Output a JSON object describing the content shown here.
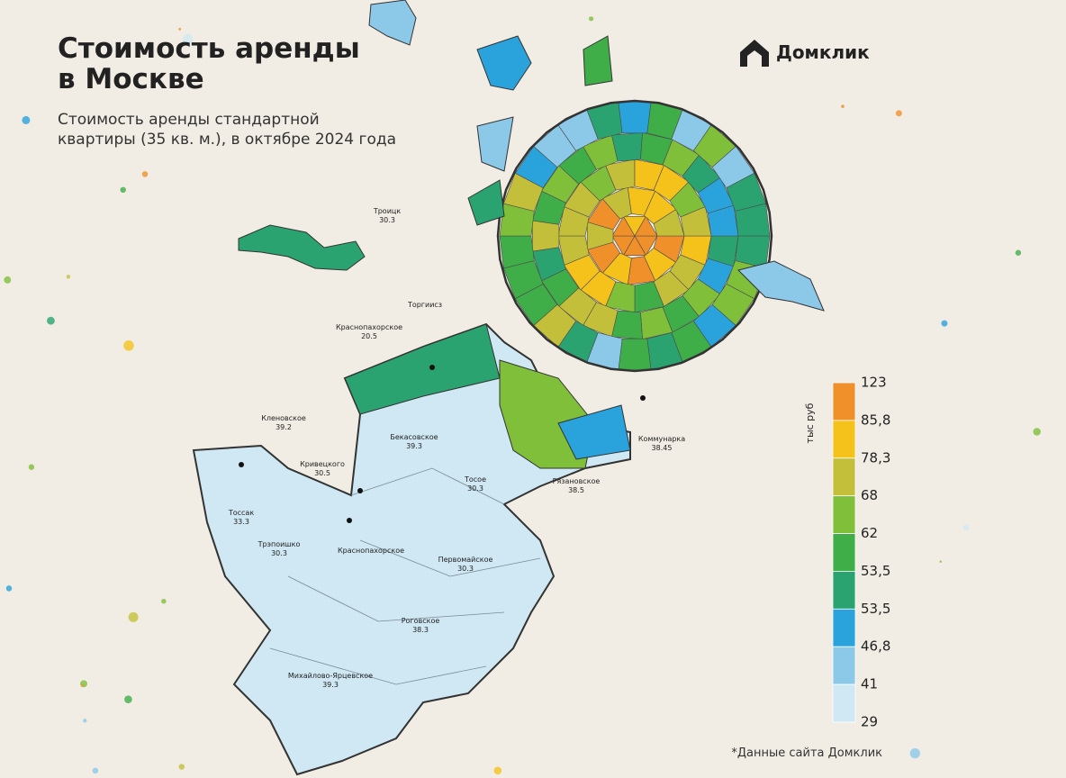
{
  "header": {
    "title": [
      "Стоимость аренды",
      "в Москве"
    ],
    "subtitle": [
      "Стоимость аренды стандартной",
      "квартиры (35 кв. м.), в октябре 2024 года"
    ],
    "brand": "Домклик"
  },
  "legend": {
    "label": "тыс руб",
    "ticks": [
      123,
      {
        "value": 85.8,
        "label": "85,8"
      },
      {
        "value": 78.3,
        "label": "78,3"
      },
      68,
      62,
      {
        "value": 53.5,
        "label": "53,5"
      },
      {
        "value": 53.5,
        "label": "53,5"
      },
      {
        "value": 46.8,
        "label": "46,8"
      },
      41,
      29
    ],
    "colors": [
      "#f0902a",
      "#f5c21b",
      "#c4bf3a",
      "#7fbf3a",
      "#3fae48",
      "#2aa371",
      "#2aa3dc",
      "#8cc8e8",
      "#cfe8f3"
    ]
  },
  "places": [
    {
      "name": "Троицк",
      "value": "30.3"
    },
    {
      "name": "Торгиисз",
      "value": null
    },
    {
      "name": "Краснопахорское",
      "value": "20.5"
    },
    {
      "name": "Кленовское",
      "value": "39.2"
    },
    {
      "name": "Кривецкого",
      "value": "30.5"
    },
    {
      "name": "Бекасовское",
      "value": "39.3"
    },
    {
      "name": "Тосое",
      "value": "30.3"
    },
    {
      "name": "Рязановское",
      "value": "38.5"
    },
    {
      "name": "Тоссак",
      "value": "33.3"
    },
    {
      "name": "Трэпоишко",
      "value": "30.3"
    },
    {
      "name": "Краснопахорское",
      "value": null
    },
    {
      "name": "Первомайское",
      "value": "30.3"
    },
    {
      "name": "Роговское",
      "value": "38.3"
    },
    {
      "name": "Михайлово-Ярцевское",
      "value": "39.3"
    },
    {
      "name": "Коммунарка",
      "value": "38.45"
    }
  ],
  "footnote": "*Данные сайта Домклик"
}
